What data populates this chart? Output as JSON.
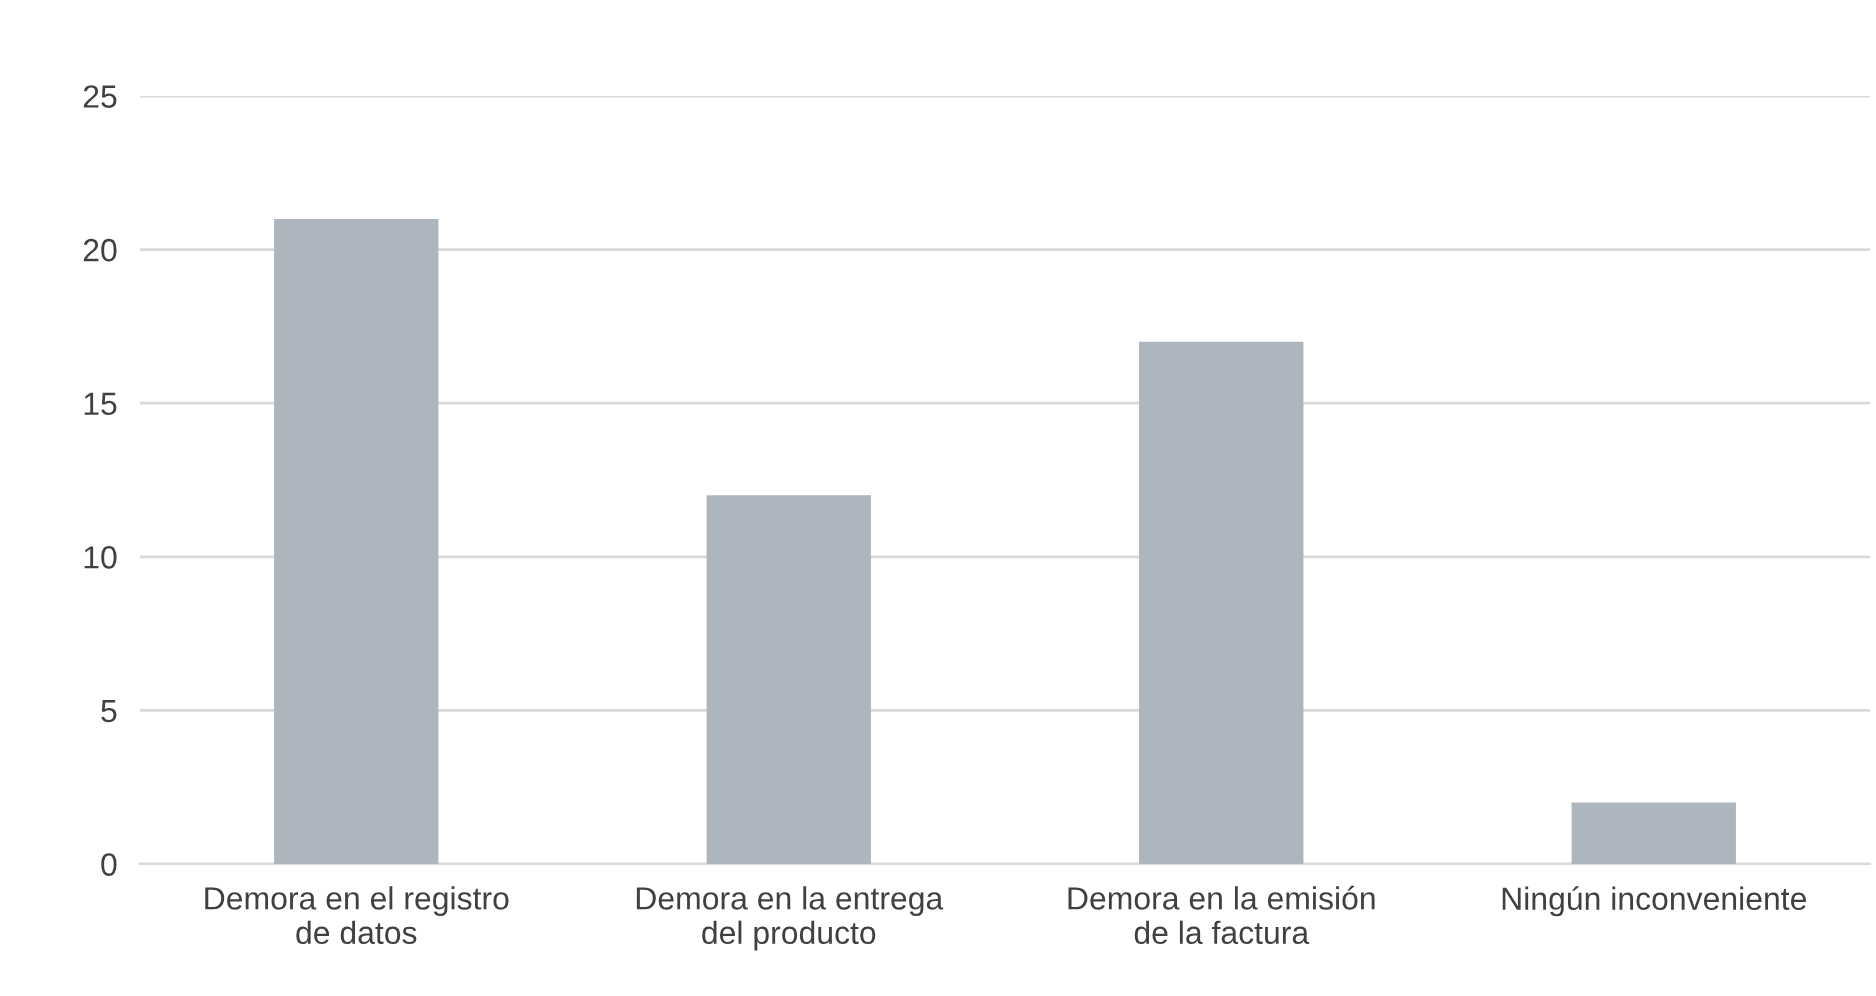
{
  "chart_data": {
    "type": "bar",
    "categories": [
      "Demora en el registro\nde datos",
      "Demora en la entrega\ndel producto",
      "Demora en la emisión\nde la factura",
      "Ningún inconveniente"
    ],
    "values": [
      21,
      12,
      17,
      2
    ],
    "color": "#adb5bf",
    "ylim": [
      0,
      25
    ],
    "yticks": [
      0,
      5,
      10,
      15,
      20,
      25
    ],
    "grid": "y"
  }
}
